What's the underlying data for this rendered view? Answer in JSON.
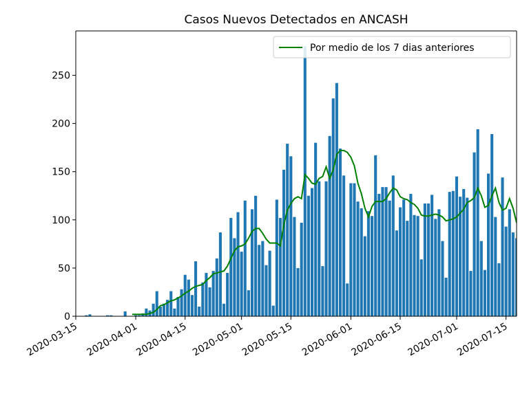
{
  "chart_data": {
    "type": "bar",
    "title": "Casos Nuevos Detectados en ANCASH",
    "x": [
      "2020-03-16",
      "2020-03-17",
      "2020-03-18",
      "2020-03-19",
      "2020-03-20",
      "2020-03-21",
      "2020-03-22",
      "2020-03-23",
      "2020-03-24",
      "2020-03-25",
      "2020-03-26",
      "2020-03-27",
      "2020-03-28",
      "2020-03-29",
      "2020-03-30",
      "2020-03-31",
      "2020-04-01",
      "2020-04-02",
      "2020-04-03",
      "2020-04-04",
      "2020-04-05",
      "2020-04-06",
      "2020-04-07",
      "2020-04-08",
      "2020-04-09",
      "2020-04-10",
      "2020-04-11",
      "2020-04-12",
      "2020-04-13",
      "2020-04-14",
      "2020-04-15",
      "2020-04-16",
      "2020-04-17",
      "2020-04-18",
      "2020-04-19",
      "2020-04-20",
      "2020-04-21",
      "2020-04-22",
      "2020-04-23",
      "2020-04-24",
      "2020-04-25",
      "2020-04-26",
      "2020-04-27",
      "2020-04-28",
      "2020-04-29",
      "2020-04-30",
      "2020-05-01",
      "2020-05-02",
      "2020-05-03",
      "2020-05-04",
      "2020-05-05",
      "2020-05-06",
      "2020-05-07",
      "2020-05-08",
      "2020-05-09",
      "2020-05-10",
      "2020-05-11",
      "2020-05-12",
      "2020-05-13",
      "2020-05-14",
      "2020-05-15",
      "2020-05-16",
      "2020-05-17",
      "2020-05-18",
      "2020-05-19",
      "2020-05-20",
      "2020-05-21",
      "2020-05-22",
      "2020-05-23",
      "2020-05-24",
      "2020-05-25",
      "2020-05-26",
      "2020-05-27",
      "2020-05-28",
      "2020-05-29",
      "2020-05-30",
      "2020-05-31",
      "2020-06-01",
      "2020-06-02",
      "2020-06-03",
      "2020-06-04",
      "2020-06-05",
      "2020-06-06",
      "2020-06-07",
      "2020-06-08",
      "2020-06-09",
      "2020-06-10",
      "2020-06-11",
      "2020-06-12",
      "2020-06-13",
      "2020-06-14",
      "2020-06-15",
      "2020-06-16",
      "2020-06-17",
      "2020-06-18",
      "2020-06-19",
      "2020-06-20",
      "2020-06-21",
      "2020-06-22",
      "2020-06-23",
      "2020-06-24",
      "2020-06-25",
      "2020-06-26",
      "2020-06-27",
      "2020-06-28",
      "2020-06-29",
      "2020-06-30",
      "2020-07-01",
      "2020-07-02",
      "2020-07-03",
      "2020-07-04",
      "2020-07-05",
      "2020-07-06",
      "2020-07-07",
      "2020-07-08",
      "2020-07-09",
      "2020-07-10",
      "2020-07-11",
      "2020-07-12",
      "2020-07-13",
      "2020-07-14",
      "2020-07-15",
      "2020-07-16",
      "2020-07-17",
      "2020-07-18"
    ],
    "series": [
      {
        "color": "#1f77b4",
        "values": [
          0,
          0,
          1,
          2,
          0,
          0,
          0,
          0,
          1,
          1,
          0,
          0,
          0,
          5,
          0,
          0,
          1,
          1,
          3,
          8,
          6,
          13,
          26,
          10,
          13,
          17,
          26,
          8,
          20,
          28,
          43,
          38,
          22,
          57,
          10,
          35,
          45,
          30,
          47,
          60,
          87,
          13,
          45,
          102,
          81,
          108,
          67,
          120,
          27,
          111,
          125,
          74,
          78,
          53,
          68,
          11,
          121,
          102,
          152,
          179,
          166,
          103,
          50,
          97,
          280,
          125,
          133,
          180,
          140,
          52,
          140,
          187,
          226,
          242,
          174,
          146,
          34,
          138,
          138,
          119,
          112,
          83,
          109,
          104,
          167,
          127,
          134,
          134,
          120,
          146,
          89,
          113,
          121,
          99,
          127,
          105,
          104,
          59,
          117,
          117,
          126,
          101,
          111,
          78,
          40,
          129,
          130,
          145,
          124,
          132,
          123,
          47,
          170,
          194,
          78,
          48,
          148,
          189,
          103,
          55,
          144,
          93,
          111,
          87,
          81
        ]
      },
      {
        "name": "Por medio de los 7 dias anteriores",
        "color": "green",
        "type": "line",
        "values": [
          null,
          null,
          null,
          null,
          null,
          null,
          null,
          null,
          null,
          null,
          null,
          null,
          null,
          null,
          null,
          2,
          2,
          2,
          2,
          2,
          3,
          4,
          7,
          11,
          12,
          14,
          16,
          17,
          19,
          21,
          24,
          26,
          29,
          31,
          32,
          33,
          37,
          40,
          44,
          45,
          46,
          47,
          52,
          60,
          68,
          72,
          73,
          75,
          81,
          88,
          91,
          91,
          86,
          80,
          76,
          76,
          76,
          73,
          95,
          110,
          117,
          122,
          124,
          122,
          147,
          143,
          138,
          137,
          143,
          145,
          155,
          143,
          152,
          168,
          172,
          172,
          170,
          165,
          156,
          138,
          127,
          112,
          103,
          114,
          119,
          119,
          119,
          122,
          128,
          133,
          131,
          124,
          122,
          121,
          118,
          116,
          112,
          105,
          104,
          104,
          105,
          106,
          105,
          103,
          99,
          100,
          101,
          103,
          107,
          111,
          118,
          120,
          123,
          133,
          125,
          113,
          115,
          125,
          133,
          118,
          110,
          112,
          122,
          112,
          97
        ]
      }
    ],
    "xlim": [
      "2020-03-15",
      "2020-07-18"
    ],
    "xticks": [
      "2020-03-15",
      "2020-04-01",
      "2020-04-15",
      "2020-05-01",
      "2020-05-15",
      "2020-06-01",
      "2020-06-15",
      "2020-07-01",
      "2020-07-15"
    ],
    "ylim": [
      0,
      296
    ],
    "yticks": [
      0,
      50,
      100,
      150,
      200,
      250
    ],
    "legend": "upper right"
  }
}
